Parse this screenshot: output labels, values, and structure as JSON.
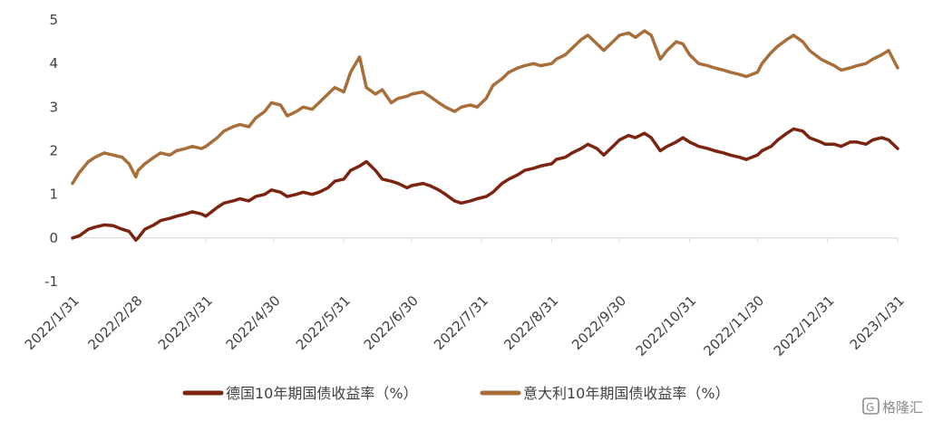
{
  "chart_data": {
    "type": "line",
    "ylim": [
      -1,
      5
    ],
    "yticks": [
      -1,
      0,
      1,
      2,
      3,
      4,
      5
    ],
    "ytick_labels": [
      "-1",
      "0",
      "1",
      "2",
      "3",
      "4",
      "5"
    ],
    "xtick_labels": [
      "2022/1/31",
      "2022/2/28",
      "2022/3/31",
      "2022/4/30",
      "2022/5/31",
      "2022/6/30",
      "2022/7/31",
      "2022/8/31",
      "2022/9/30",
      "2022/10/31",
      "2022/11/30",
      "2022/12/31",
      "2023/1/31"
    ],
    "grid": false,
    "legend_position": "bottom",
    "series": [
      {
        "name": "德国10年期国债收益率（%）",
        "color": "#7B2410",
        "x": [
          "2022/1/31",
          "2022/2/3",
          "2022/2/7",
          "2022/2/10",
          "2022/2/14",
          "2022/2/18",
          "2022/2/22",
          "2022/2/25",
          "2022/2/28",
          "2022/3/1",
          "2022/3/4",
          "2022/3/8",
          "2022/3/11",
          "2022/3/15",
          "2022/3/18",
          "2022/3/22",
          "2022/3/25",
          "2022/3/29",
          "2022/3/31",
          "2022/4/5",
          "2022/4/8",
          "2022/4/12",
          "2022/4/15",
          "2022/4/19",
          "2022/4/22",
          "2022/4/26",
          "2022/4/29",
          "2022/5/3",
          "2022/5/6",
          "2022/5/10",
          "2022/5/13",
          "2022/5/17",
          "2022/5/20",
          "2022/5/24",
          "2022/5/27",
          "2022/5/31",
          "2022/6/3",
          "2022/6/7",
          "2022/6/10",
          "2022/6/14",
          "2022/6/17",
          "2022/6/21",
          "2022/6/24",
          "2022/6/28",
          "2022/6/30",
          "2022/7/5",
          "2022/7/8",
          "2022/7/12",
          "2022/7/15",
          "2022/7/19",
          "2022/7/22",
          "2022/7/26",
          "2022/7/29",
          "2022/8/2",
          "2022/8/5",
          "2022/8/9",
          "2022/8/12",
          "2022/8/16",
          "2022/8/19",
          "2022/8/23",
          "2022/8/26",
          "2022/8/31",
          "2022/9/2",
          "2022/9/6",
          "2022/9/9",
          "2022/9/13",
          "2022/9/16",
          "2022/9/20",
          "2022/9/23",
          "2022/9/27",
          "2022/9/30",
          "2022/10/4",
          "2022/10/7",
          "2022/10/11",
          "2022/10/14",
          "2022/10/18",
          "2022/10/21",
          "2022/10/25",
          "2022/10/28",
          "2022/10/31",
          "2022/11/4",
          "2022/11/8",
          "2022/11/11",
          "2022/11/15",
          "2022/11/18",
          "2022/11/22",
          "2022/11/25",
          "2022/11/30",
          "2022/12/2",
          "2022/12/6",
          "2022/12/9",
          "2022/12/13",
          "2022/12/16",
          "2022/12/20",
          "2022/12/23",
          "2022/12/28",
          "2022/12/30",
          "2023/1/3",
          "2023/1/6",
          "2023/1/10",
          "2023/1/13",
          "2023/1/17",
          "2023/1/20",
          "2023/1/24",
          "2023/1/27",
          "2023/1/31"
        ],
        "values": [
          0.0,
          0.05,
          0.2,
          0.25,
          0.3,
          0.28,
          0.2,
          0.15,
          -0.05,
          0.0,
          0.2,
          0.3,
          0.4,
          0.45,
          0.5,
          0.55,
          0.6,
          0.55,
          0.5,
          0.7,
          0.8,
          0.85,
          0.9,
          0.85,
          0.95,
          1.0,
          1.1,
          1.05,
          0.95,
          1.0,
          1.05,
          1.0,
          1.05,
          1.15,
          1.3,
          1.35,
          1.55,
          1.65,
          1.75,
          1.55,
          1.35,
          1.3,
          1.25,
          1.15,
          1.2,
          1.25,
          1.2,
          1.1,
          1.0,
          0.85,
          0.8,
          0.85,
          0.9,
          0.95,
          1.05,
          1.25,
          1.35,
          1.45,
          1.55,
          1.6,
          1.65,
          1.7,
          1.8,
          1.85,
          1.95,
          2.05,
          2.15,
          2.05,
          1.9,
          2.1,
          2.25,
          2.35,
          2.3,
          2.4,
          2.3,
          2.0,
          2.1,
          2.2,
          2.3,
          2.2,
          2.1,
          2.05,
          2.0,
          1.95,
          1.9,
          1.85,
          1.8,
          1.9,
          2.0,
          2.1,
          2.25,
          2.4,
          2.5,
          2.45,
          2.3,
          2.2,
          2.15,
          2.15,
          2.1,
          2.2,
          2.2,
          2.15,
          2.25,
          2.3,
          2.25,
          2.05
        ]
      },
      {
        "name": "意大利10年期国债收益率（%）",
        "color": "#A86F3B",
        "x": [
          "2022/1/31",
          "2022/2/3",
          "2022/2/7",
          "2022/2/10",
          "2022/2/14",
          "2022/2/18",
          "2022/2/22",
          "2022/2/25",
          "2022/2/28",
          "2022/3/1",
          "2022/3/4",
          "2022/3/8",
          "2022/3/11",
          "2022/3/15",
          "2022/3/18",
          "2022/3/22",
          "2022/3/25",
          "2022/3/29",
          "2022/3/31",
          "2022/4/5",
          "2022/4/8",
          "2022/4/12",
          "2022/4/15",
          "2022/4/19",
          "2022/4/22",
          "2022/4/26",
          "2022/4/29",
          "2022/5/3",
          "2022/5/6",
          "2022/5/10",
          "2022/5/13",
          "2022/5/17",
          "2022/5/20",
          "2022/5/24",
          "2022/5/27",
          "2022/5/31",
          "2022/6/3",
          "2022/6/7",
          "2022/6/10",
          "2022/6/14",
          "2022/6/17",
          "2022/6/21",
          "2022/6/24",
          "2022/6/28",
          "2022/6/30",
          "2022/7/5",
          "2022/7/8",
          "2022/7/12",
          "2022/7/15",
          "2022/7/19",
          "2022/7/22",
          "2022/7/26",
          "2022/7/29",
          "2022/8/2",
          "2022/8/5",
          "2022/8/9",
          "2022/8/12",
          "2022/8/16",
          "2022/8/19",
          "2022/8/23",
          "2022/8/26",
          "2022/8/31",
          "2022/9/2",
          "2022/9/6",
          "2022/9/9",
          "2022/9/13",
          "2022/9/16",
          "2022/9/20",
          "2022/9/23",
          "2022/9/27",
          "2022/9/30",
          "2022/10/4",
          "2022/10/7",
          "2022/10/11",
          "2022/10/14",
          "2022/10/18",
          "2022/10/21",
          "2022/10/25",
          "2022/10/28",
          "2022/10/31",
          "2022/11/4",
          "2022/11/8",
          "2022/11/11",
          "2022/11/15",
          "2022/11/18",
          "2022/11/22",
          "2022/11/25",
          "2022/11/30",
          "2022/12/2",
          "2022/12/6",
          "2022/12/9",
          "2022/12/13",
          "2022/12/16",
          "2022/12/20",
          "2022/12/23",
          "2022/12/28",
          "2022/12/30",
          "2023/1/3",
          "2023/1/6",
          "2023/1/10",
          "2023/1/13",
          "2023/1/17",
          "2023/1/20",
          "2023/1/24",
          "2023/1/27",
          "2023/1/31"
        ],
        "values": [
          1.25,
          1.5,
          1.75,
          1.85,
          1.95,
          1.9,
          1.85,
          1.7,
          1.4,
          1.55,
          1.7,
          1.85,
          1.95,
          1.9,
          2.0,
          2.05,
          2.1,
          2.05,
          2.1,
          2.3,
          2.45,
          2.55,
          2.6,
          2.55,
          2.75,
          2.9,
          3.1,
          3.05,
          2.8,
          2.9,
          3.0,
          2.95,
          3.1,
          3.3,
          3.45,
          3.35,
          3.8,
          4.15,
          3.45,
          3.3,
          3.4,
          3.1,
          3.2,
          3.25,
          3.3,
          3.35,
          3.25,
          3.1,
          3.0,
          2.9,
          3.0,
          3.05,
          3.0,
          3.2,
          3.5,
          3.65,
          3.8,
          3.9,
          3.95,
          4.0,
          3.95,
          4.0,
          4.1,
          4.2,
          4.35,
          4.55,
          4.65,
          4.45,
          4.3,
          4.5,
          4.65,
          4.7,
          4.6,
          4.75,
          4.65,
          4.1,
          4.3,
          4.5,
          4.45,
          4.2,
          4.0,
          3.95,
          3.9,
          3.85,
          3.8,
          3.75,
          3.7,
          3.8,
          4.0,
          4.25,
          4.4,
          4.55,
          4.65,
          4.5,
          4.3,
          4.1,
          4.05,
          3.95,
          3.85,
          3.9,
          3.95,
          4.0,
          4.1,
          4.2,
          4.3,
          3.9
        ]
      }
    ]
  },
  "watermark": {
    "text": "格隆汇",
    "icon": "gelonghui-logo-icon"
  }
}
